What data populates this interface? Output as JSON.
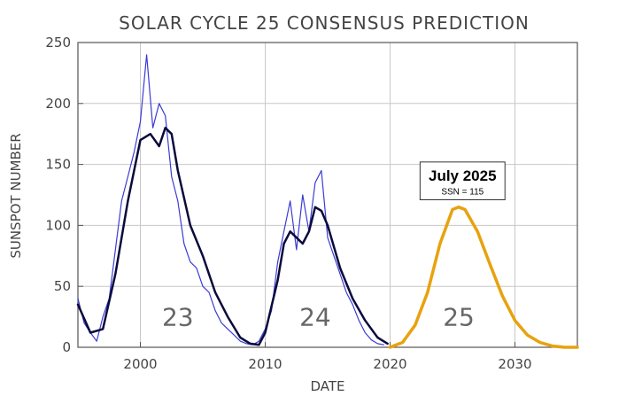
{
  "chart_data": {
    "type": "line",
    "title": "SOLAR CYCLE 25 CONSENSUS PREDICTION",
    "xlabel": "DATE",
    "ylabel": "SUNSPOT NUMBER",
    "xlim": [
      1995,
      2035
    ],
    "ylim": [
      0,
      250
    ],
    "xticks": [
      2000,
      2010,
      2020,
      2030
    ],
    "yticks": [
      0,
      50,
      100,
      150,
      200,
      250
    ],
    "grid": true,
    "colors": {
      "monthly": "#3b3bd6",
      "smoothed": "#0a0a3c",
      "prediction": "#e8a20e",
      "grid": "#c8c8c8",
      "axis": "#555555"
    },
    "series": [
      {
        "kind": "monthly",
        "x": [
          1995,
          1995.5,
          1996,
          1996.5,
          1997,
          1997.5,
          1998,
          1998.5,
          1999,
          1999.5,
          2000,
          2000.5,
          2001,
          2001.5,
          2002,
          2002.5,
          2003,
          2003.5,
          2004,
          2004.5,
          2005,
          2005.5,
          2006,
          2006.5,
          2007,
          2007.5,
          2008,
          2008.5,
          2009,
          2009.5,
          2010,
          2010.5,
          2011,
          2011.5,
          2012,
          2012.5,
          2013,
          2013.5,
          2014,
          2014.5,
          2015,
          2015.5,
          2016,
          2016.5,
          2017,
          2017.5,
          2018,
          2018.5,
          2019,
          2019.5
        ],
        "y": [
          40,
          20,
          12,
          5,
          25,
          40,
          80,
          120,
          140,
          160,
          185,
          240,
          180,
          200,
          190,
          140,
          120,
          85,
          70,
          65,
          50,
          45,
          30,
          20,
          15,
          10,
          5,
          3,
          2,
          5,
          15,
          30,
          70,
          95,
          120,
          80,
          125,
          95,
          135,
          145,
          90,
          75,
          60,
          45,
          35,
          22,
          12,
          6,
          3,
          2
        ]
      },
      {
        "kind": "smoothed",
        "x": [
          1995,
          1996,
          1997,
          1998,
          1999,
          2000,
          2000.8,
          2001.5,
          2002,
          2002.5,
          2003,
          2004,
          2005,
          2006,
          2007,
          2008,
          2008.8,
          2009.5,
          2010,
          2011,
          2011.5,
          2012,
          2012.5,
          2013,
          2013.5,
          2014,
          2014.5,
          2015,
          2016,
          2017,
          2018,
          2019,
          2019.8
        ],
        "y": [
          35,
          12,
          15,
          60,
          120,
          170,
          175,
          165,
          180,
          175,
          145,
          100,
          75,
          45,
          25,
          8,
          3,
          2,
          12,
          55,
          85,
          95,
          90,
          85,
          95,
          115,
          112,
          100,
          65,
          40,
          22,
          8,
          3
        ]
      },
      {
        "kind": "prediction",
        "x": [
          2020,
          2021,
          2022,
          2023,
          2024,
          2025,
          2025.5,
          2026,
          2027,
          2028,
          2029,
          2030,
          2031,
          2032,
          2033,
          2034,
          2035
        ],
        "y": [
          0,
          4,
          18,
          45,
          85,
          113,
          115,
          113,
          95,
          68,
          42,
          22,
          10,
          4,
          1,
          0,
          0
        ]
      }
    ],
    "cycle_labels": [
      {
        "text": "23",
        "x": 2003,
        "y": 25
      },
      {
        "text": "24",
        "x": 2014,
        "y": 25
      },
      {
        "text": "25",
        "x": 2025.5,
        "y": 25
      }
    ],
    "callout": {
      "title": "July 2025",
      "subtitle": "SSN = 115",
      "x_from": 2022.4,
      "x_to": 2029.2,
      "y_from": 121,
      "y_to": 152
    }
  }
}
